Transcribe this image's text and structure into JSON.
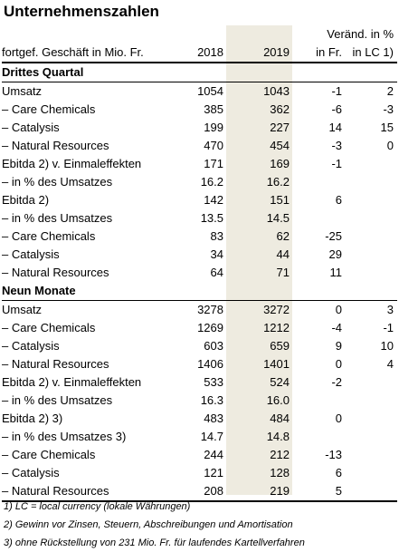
{
  "title": "Unternehmenszahlen",
  "header": {
    "col0": "fortgef. Geschäft in Mio. Fr.",
    "y2018": "2018",
    "y2019": "2019",
    "veraend_top": "Veränd. in %",
    "in_fr": "in Fr.",
    "in_lc": "in LC 1)"
  },
  "q3": {
    "label": "Drittes Quartal",
    "rows": [
      [
        "Umsatz",
        "1054",
        "1043",
        "-1",
        "2"
      ],
      [
        "– Care Chemicals",
        "385",
        "362",
        "-6",
        "-3"
      ],
      [
        "– Catalysis",
        "199",
        "227",
        "14",
        "15"
      ],
      [
        "– Natural Resources",
        "470",
        "454",
        "-3",
        "0"
      ],
      [
        "Ebitda 2) v. Einmaleffekten",
        "171",
        "169",
        "-1",
        ""
      ],
      [
        "– in % des Umsatzes",
        "16.2",
        "16.2",
        "",
        ""
      ],
      [
        "Ebitda 2)",
        "142",
        "151",
        "6",
        ""
      ],
      [
        "– in % des Umsatzes",
        "13.5",
        "14.5",
        "",
        ""
      ],
      [
        "– Care Chemicals",
        "83",
        "62",
        "-25",
        ""
      ],
      [
        "– Catalysis",
        "34",
        "44",
        "29",
        ""
      ],
      [
        "– Natural Resources",
        "64",
        "71",
        "11",
        ""
      ]
    ]
  },
  "nm": {
    "label": "Neun Monate",
    "rows": [
      [
        "Umsatz",
        "3278",
        "3272",
        "0",
        "3"
      ],
      [
        "– Care Chemicals",
        "1269",
        "1212",
        "-4",
        "-1"
      ],
      [
        "– Catalysis",
        "603",
        "659",
        "9",
        "10"
      ],
      [
        "– Natural Resources",
        "1406",
        "1401",
        "0",
        "4"
      ],
      [
        "Ebitda 2) v. Einmaleffekten",
        "533",
        "524",
        "-2",
        ""
      ],
      [
        "– in % des Umsatzes",
        "16.3",
        "16.0",
        "",
        ""
      ],
      [
        "Ebitda 2) 3)",
        "483",
        "484",
        "0",
        ""
      ],
      [
        "– in % des Umsatzes 3)",
        "14.7",
        "14.8",
        "",
        ""
      ],
      [
        "– Care Chemicals",
        "244",
        "212",
        "-13",
        ""
      ],
      [
        "– Catalysis",
        "121",
        "128",
        "6",
        ""
      ],
      [
        "– Natural Resources",
        "208",
        "219",
        "5",
        ""
      ]
    ]
  },
  "footnotes": [
    "1) LC = local currency (lokale Währungen)",
    "2) Gewinn vor Zinsen, Steuern, Abschreibungen und Amortisation",
    "3) ohne Rückstellung von 231 Mio. Fr. für laufendes Kartellverfahren"
  ]
}
